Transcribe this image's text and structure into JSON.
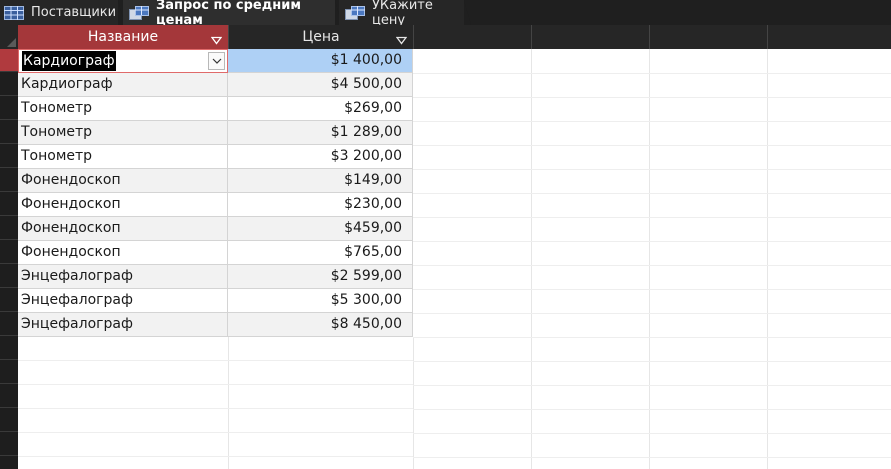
{
  "tabs": [
    {
      "label": "Поставщики",
      "icon": "table-icon",
      "active": false
    },
    {
      "label": "Запрос по средним ценам",
      "icon": "query-icon",
      "active": true
    },
    {
      "label": "УКажите цену",
      "icon": "query-icon",
      "active": false
    }
  ],
  "columns": [
    {
      "label": "Название",
      "selected": true
    },
    {
      "label": "Цена",
      "selected": false
    }
  ],
  "rows": [
    {
      "name": "Кардиограф",
      "price": "$1 400,00"
    },
    {
      "name": "Кардиограф",
      "price": "$4 500,00"
    },
    {
      "name": "Тонометр",
      "price": "$269,00"
    },
    {
      "name": "Тонометр",
      "price": "$1 289,00"
    },
    {
      "name": "Тонометр",
      "price": "$3 200,00"
    },
    {
      "name": "Фонендоскоп",
      "price": "$149,00"
    },
    {
      "name": "Фонендоскоп",
      "price": "$230,00"
    },
    {
      "name": "Фонендоскоп",
      "price": "$459,00"
    },
    {
      "name": "Фонендоскоп",
      "price": "$765,00"
    },
    {
      "name": "Энцефалограф",
      "price": "$2 599,00"
    },
    {
      "name": "Энцефалограф",
      "price": "$5 300,00"
    },
    {
      "name": "Энцефалограф",
      "price": "$8 450,00"
    }
  ],
  "colors": {
    "accent": "#a4373a",
    "selected_cell": "#aed0f5",
    "tab_bar": "#1f1f1f"
  }
}
